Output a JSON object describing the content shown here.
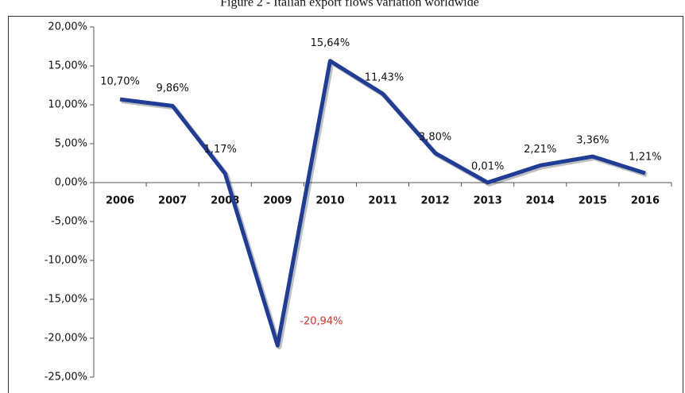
{
  "chart_data": {
    "type": "line",
    "title": "Figure 2 - Italian export flows variation worldwide",
    "categories": [
      "2006",
      "2007",
      "2008",
      "2009",
      "2010",
      "2011",
      "2012",
      "2013",
      "2014",
      "2015",
      "2016"
    ],
    "series": [
      {
        "color": "#1f3c96",
        "values": [
          10.7,
          9.86,
          1.17,
          -20.94,
          15.64,
          11.43,
          3.8,
          0.01,
          2.21,
          3.36,
          1.21
        ],
        "value_labels": [
          "10,70%",
          "9,86%",
          "1,17%",
          "-20,94%",
          "15,64%",
          "11,43%",
          "3,80%",
          "0,01%",
          "2,21%",
          "3,36%",
          "1,21%"
        ]
      }
    ],
    "negative_label_color": "#e0302a",
    "ylim": [
      -25,
      20
    ],
    "yticks": [
      {
        "value": -25,
        "label": "-25,00%"
      },
      {
        "value": -20,
        "label": "-20,00%"
      },
      {
        "value": -15,
        "label": "-15,00%"
      },
      {
        "value": -10,
        "label": "-10,00%"
      },
      {
        "value": -5,
        "label": "-5,00%"
      },
      {
        "value": 0,
        "label": "0,00%"
      },
      {
        "value": 5,
        "label": "5,00%"
      },
      {
        "value": 10,
        "label": "10,00%"
      },
      {
        "value": 15,
        "label": "15,00%"
      },
      {
        "value": 20,
        "label": "20,00%"
      }
    ],
    "grid": false
  }
}
